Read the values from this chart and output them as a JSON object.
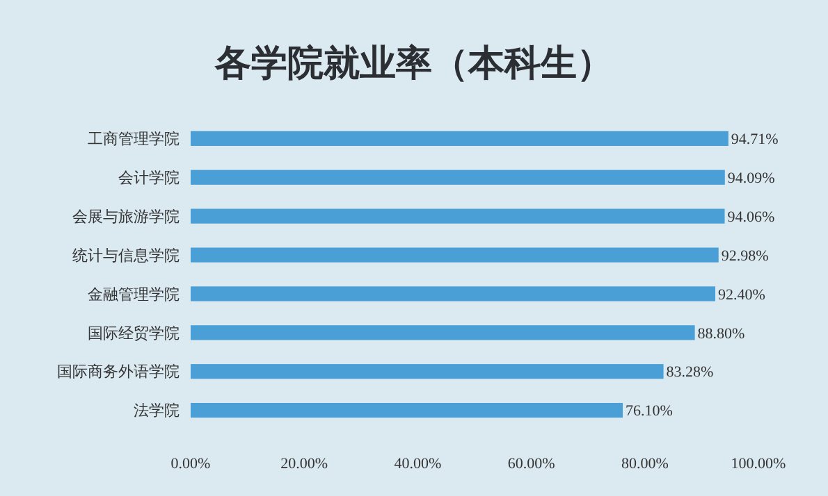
{
  "chart_data": {
    "type": "bar",
    "orientation": "horizontal",
    "title": "各学院就业率（本科生）",
    "categories": [
      "工商管理学院",
      "会计学院",
      "会展与旅游学院",
      "统计与信息学院",
      "金融管理学院",
      "国际经贸学院",
      "国际商务外语学院",
      "法学院"
    ],
    "values": [
      94.71,
      94.09,
      94.06,
      92.98,
      92.4,
      88.8,
      83.28,
      76.1
    ],
    "value_labels": [
      "94.71%",
      "94.09%",
      "94.06%",
      "92.98%",
      "92.40%",
      "88.80%",
      "83.28%",
      "76.10%"
    ],
    "color": "#4a9fd6",
    "xlim": [
      0,
      100
    ],
    "xticks": [
      {
        "value": 0,
        "label": "0.00%"
      },
      {
        "value": 20,
        "label": "20.00%"
      },
      {
        "value": 40,
        "label": "40.00%"
      },
      {
        "value": 60,
        "label": "60.00%"
      },
      {
        "value": 80,
        "label": "80.00%"
      },
      {
        "value": 100,
        "label": "100.00%"
      }
    ],
    "grid": false
  }
}
